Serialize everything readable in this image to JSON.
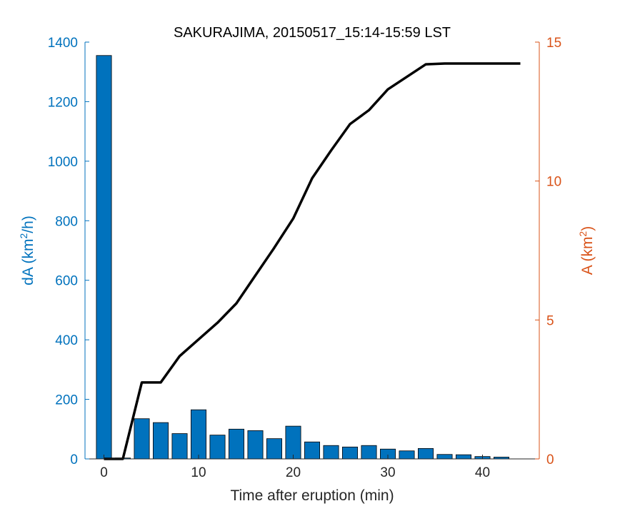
{
  "chart_data": {
    "type": "bar+line",
    "title": "SAKURAJIMA, 20150517_15:14-15:59 LST",
    "xlabel": "Time after eruption (min)",
    "ylabel_left": {
      "main": "dA (km",
      "sup": "2",
      "tail": "/h)"
    },
    "ylabel_right": {
      "main": "A (km",
      "sup": "2",
      "tail": ")"
    },
    "xlim": [
      -2,
      46
    ],
    "ylim_left": [
      0,
      1400
    ],
    "ylim_right": [
      0,
      15
    ],
    "x_ticks": [
      "0",
      "10",
      "20",
      "30",
      "40"
    ],
    "y_left_ticks": [
      "0",
      "200",
      "400",
      "600",
      "800",
      "1000",
      "1200",
      "1400"
    ],
    "y_right_ticks": [
      "0",
      "5",
      "10",
      "15"
    ],
    "colors": {
      "bar": "#0072BD",
      "bar_edge": "#000000",
      "line": "#000000",
      "left_axis": "#0072BD",
      "right_axis": "#D95319",
      "x_axis": "#262626"
    },
    "bars": {
      "series_name": "dA",
      "x": [
        0,
        2,
        4,
        6,
        8,
        10,
        12,
        14,
        16,
        18,
        20,
        22,
        24,
        26,
        28,
        30,
        32,
        34,
        36,
        38,
        40,
        42
      ],
      "values": [
        1355,
        3,
        135,
        122,
        85,
        165,
        80,
        100,
        95,
        68,
        110,
        57,
        45,
        40,
        45,
        33,
        27,
        35,
        15,
        14,
        8,
        6
      ]
    },
    "line": {
      "series_name": "A",
      "x": [
        0,
        2,
        4,
        6,
        8,
        10,
        12,
        14,
        16,
        18,
        20,
        22,
        24,
        26,
        28,
        30,
        32,
        34,
        36,
        38,
        40,
        42,
        44
      ],
      "values": [
        0,
        0,
        2.75,
        2.75,
        3.7,
        4.3,
        4.9,
        5.6,
        6.6,
        7.6,
        8.65,
        10.1,
        11.1,
        12.05,
        12.55,
        13.3,
        13.75,
        14.2,
        14.23,
        14.23,
        14.23,
        14.23,
        14.23
      ]
    }
  }
}
